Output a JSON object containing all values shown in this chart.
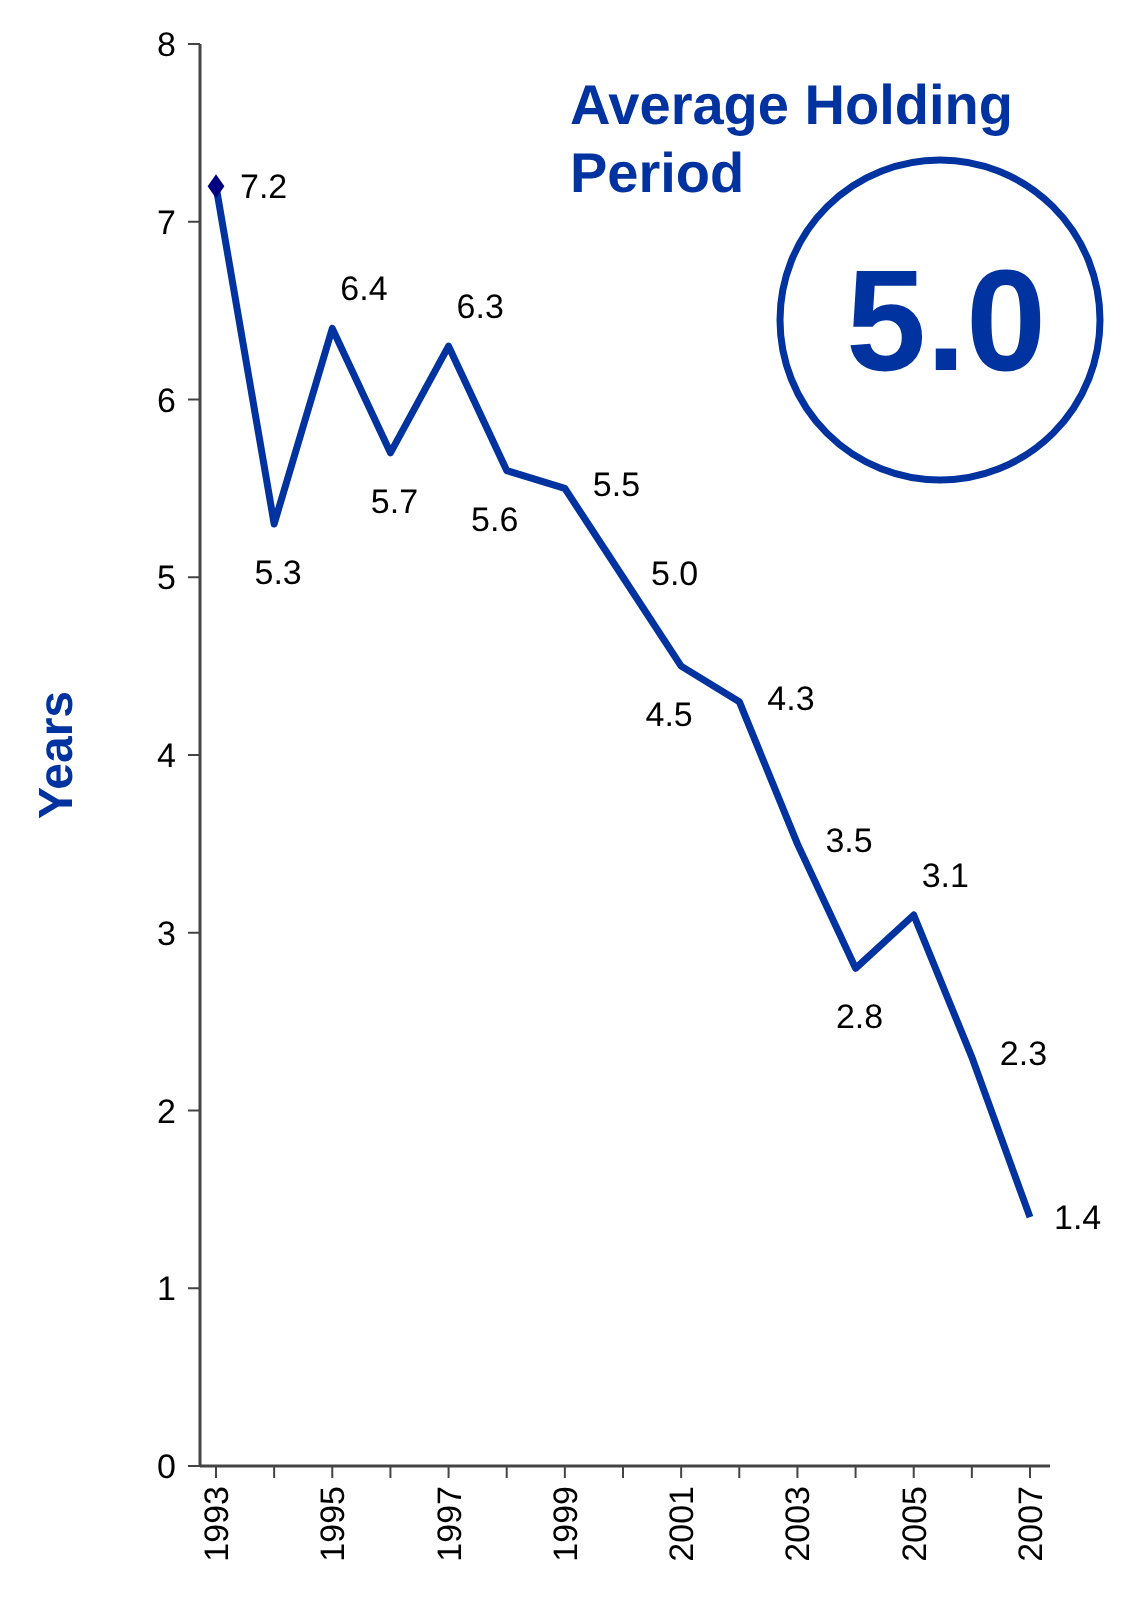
{
  "chart_data": {
    "type": "line",
    "ylabel": "Years",
    "categories": [
      "1993",
      null,
      "1995",
      null,
      "1997",
      null,
      "1999",
      null,
      "2001",
      null,
      "2003",
      null,
      "2005",
      null,
      "2007"
    ],
    "series": [
      {
        "type": "line",
        "color": "#0033a0",
        "values": [
          7.2,
          5.3,
          6.4,
          5.7,
          6.3,
          5.6,
          5.5,
          5.0,
          4.5,
          4.3,
          3.5,
          2.8,
          3.1,
          2.3,
          1.4
        ],
        "value_labels": [
          "7.2",
          "5.3",
          "6.4",
          "5.7",
          "6.3",
          "5.6",
          "5.5",
          "5.0",
          "4.5",
          "4.3",
          "3.5",
          "2.8",
          "3.1",
          "2.3",
          "1.4"
        ]
      },
      {
        "type": "scatter",
        "color": "#000080",
        "marker": "diamond",
        "values": [
          7.2,
          null,
          null,
          null,
          null,
          null,
          null,
          null,
          null,
          null,
          null,
          null,
          null,
          null,
          null
        ]
      }
    ],
    "ylim": [
      0,
      8
    ],
    "yticks": [
      0,
      1,
      2,
      3,
      4,
      5,
      6,
      7,
      8
    ],
    "grid": false,
    "marker": "none",
    "line_style": "solid",
    "annotations": [
      "Average Holding Period",
      "5.0"
    ]
  }
}
